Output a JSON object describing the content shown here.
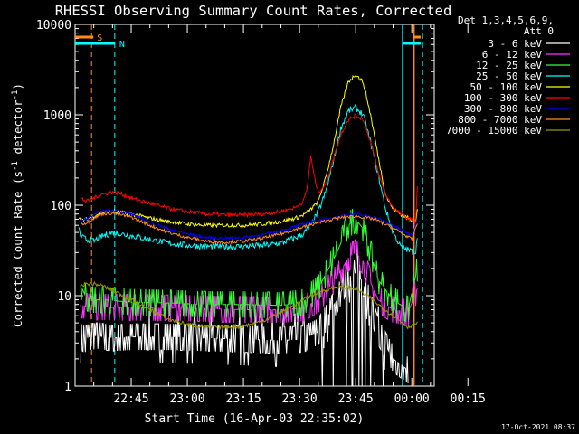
{
  "chart_data": {
    "type": "line",
    "title": "RHESSI Observing Summary Count Rates, Corrected",
    "xlabel": "Start Time (16-Apr-03 22:35:02)",
    "ylabel": "Corrected Count Rate (s⁻¹ detector⁻¹)",
    "ylabel_main": "Corrected Count Rate (s",
    "ylabel_sup1": "-1",
    "ylabel_mid": " detector",
    "ylabel_sup2": "-1",
    "ylabel_end": ")",
    "yscale": "log",
    "ylim": [
      1,
      10000
    ],
    "xlim_minutes": [
      -15.0,
      81.0
    ],
    "x_ticks": [
      {
        "label": "22:45",
        "minute": 0
      },
      {
        "label": "23:00",
        "minute": 15
      },
      {
        "label": "23:15",
        "minute": 30
      },
      {
        "label": "23:30",
        "minute": 45
      },
      {
        "label": "23:45",
        "minute": 60
      },
      {
        "label": "00:00",
        "minute": 75
      },
      {
        "label": "00:15",
        "minute": 90
      }
    ],
    "y_ticks": [
      {
        "label": "1",
        "value": 1
      },
      {
        "label": "10",
        "value": 10
      },
      {
        "label": "100",
        "value": 100
      },
      {
        "label": "1000",
        "value": 1000
      },
      {
        "label": "10000",
        "value": 10000
      }
    ],
    "legend_header": [
      "Det 1,3,4,5,6,9,",
      "Att 0"
    ],
    "legend_position": "right",
    "series": [
      {
        "name": "3 - 6 keV",
        "color": "#ffffff",
        "x": [
          -13.5,
          -12.5,
          -11,
          -9,
          -7,
          -5,
          0,
          10,
          20,
          30,
          40,
          46,
          50,
          55,
          58,
          60,
          62,
          64,
          66,
          70,
          74
        ],
        "y": [
          3.5,
          3.3,
          3.5,
          3.6,
          3.5,
          3.4,
          3.5,
          3.5,
          3.4,
          3.3,
          3.2,
          3.3,
          4,
          9,
          16,
          18,
          14,
          8,
          4,
          2,
          1.5
        ]
      },
      {
        "name": "6 - 12 keV",
        "color": "#ff33ff",
        "x": [
          -13.5,
          -12,
          -10,
          -7,
          -5,
          0,
          10,
          20,
          30,
          40,
          46,
          50,
          55,
          58,
          60,
          62,
          64,
          66,
          70,
          74,
          76.5
        ],
        "y": [
          8,
          7.6,
          7.5,
          7.5,
          7.4,
          7.4,
          7.3,
          7.2,
          7,
          7,
          7.3,
          9,
          16,
          26,
          30,
          24,
          14,
          9,
          7,
          6.5,
          12
        ]
      },
      {
        "name": "12 - 25 keV",
        "color": "#33ff33",
        "x": [
          -13.5,
          -12,
          -10,
          -7,
          -5,
          0,
          10,
          20,
          30,
          40,
          46,
          50,
          55,
          58,
          60,
          62,
          64,
          66,
          70,
          74,
          76.5
        ],
        "y": [
          13,
          9.5,
          9,
          9,
          8.8,
          8.5,
          8.3,
          8,
          8,
          7.8,
          8.5,
          12,
          30,
          60,
          70,
          55,
          30,
          15,
          9,
          7,
          20
        ]
      },
      {
        "name": "25 - 50 keV",
        "color": "#00ffff",
        "x": [
          -14,
          -13.5,
          -12,
          -10,
          -8,
          -5,
          0,
          5,
          10,
          15,
          20,
          25,
          30,
          35,
          40,
          44,
          46,
          48,
          50,
          52,
          54,
          56,
          58,
          60,
          62,
          64,
          66,
          68,
          70,
          72,
          74,
          76,
          76.5
        ],
        "y": [
          55,
          45,
          42,
          40,
          45,
          50,
          46,
          42,
          38,
          36,
          35,
          35,
          35,
          36,
          38,
          44,
          48,
          60,
          85,
          140,
          300,
          700,
          1100,
          1200,
          1000,
          500,
          220,
          90,
          50,
          35,
          32,
          30,
          45
        ]
      },
      {
        "name": "50 - 100 keV",
        "color": "#ffff00",
        "x": [
          -14,
          -13.5,
          -12,
          -10,
          -8,
          -5,
          0,
          5,
          10,
          15,
          20,
          25,
          30,
          35,
          40,
          44,
          46,
          48,
          50,
          52,
          54,
          56,
          58,
          60,
          62,
          64,
          66,
          68,
          70,
          72,
          74,
          76,
          76.5
        ],
        "y": [
          75,
          68,
          70,
          76,
          82,
          85,
          80,
          72,
          66,
          62,
          60,
          60,
          60,
          62,
          66,
          72,
          78,
          90,
          110,
          200,
          450,
          1200,
          2300,
          2800,
          2300,
          1000,
          350,
          130,
          90,
          80,
          72,
          65,
          90
        ]
      },
      {
        "name": "100 - 300 keV",
        "color": "#ff0000",
        "x": [
          -13.5,
          -12,
          -10,
          -8,
          -5,
          -3,
          0,
          5,
          10,
          15,
          20,
          25,
          30,
          35,
          40,
          44,
          46,
          47,
          48,
          49,
          50,
          52,
          54,
          56,
          58,
          60,
          62,
          64,
          66,
          68,
          70,
          72,
          74,
          76,
          76.5
        ],
        "y": [
          120,
          110,
          120,
          132,
          140,
          135,
          120,
          105,
          92,
          85,
          80,
          78,
          78,
          80,
          85,
          95,
          110,
          150,
          350,
          200,
          140,
          170,
          320,
          600,
          880,
          980,
          900,
          500,
          230,
          130,
          95,
          80,
          72,
          65,
          160
        ]
      },
      {
        "name": "300 - 800 keV",
        "color": "#0000ff",
        "x": [
          -13.5,
          -12,
          -10,
          -8,
          -5,
          0,
          5,
          10,
          15,
          20,
          25,
          30,
          35,
          40,
          45,
          50,
          55,
          60,
          65,
          70,
          75,
          76.5
        ],
        "y": [
          68,
          70,
          78,
          85,
          88,
          80,
          65,
          55,
          48,
          44,
          43,
          44,
          47,
          52,
          60,
          68,
          75,
          80,
          74,
          60,
          46,
          70
        ]
      },
      {
        "name": "800 - 7000 keV",
        "color": "#ff8c1a",
        "x": [
          -13.5,
          -12,
          -10,
          -8,
          -5,
          0,
          5,
          10,
          15,
          20,
          25,
          30,
          35,
          40,
          45,
          50,
          55,
          60,
          65,
          70,
          75,
          76.5
        ],
        "y": [
          62,
          64,
          72,
          80,
          82,
          74,
          60,
          50,
          44,
          40,
          39,
          40,
          43,
          48,
          56,
          64,
          72,
          76,
          70,
          56,
          42,
          64
        ]
      },
      {
        "name": "7000 - 15000 keV",
        "color": "#999900",
        "x": [
          -13.5,
          -12,
          -10,
          -8,
          -5,
          0,
          5,
          10,
          15,
          20,
          25,
          30,
          35,
          40,
          45,
          50,
          55,
          60,
          63,
          66,
          70,
          74,
          76.5
        ],
        "y": [
          13,
          13.5,
          13.5,
          13,
          11.5,
          9,
          7,
          5.5,
          4.8,
          4.5,
          4.5,
          4.6,
          5.2,
          6.5,
          8.5,
          11,
          12.5,
          12,
          10,
          8,
          6,
          4.5,
          5
        ]
      }
    ],
    "annotations": [
      {
        "label": "S",
        "color": "#ff8c1a"
      },
      {
        "label": "N",
        "color": "#00ffff"
      }
    ]
  },
  "timestamp": "17-Oct-2021 08:37"
}
